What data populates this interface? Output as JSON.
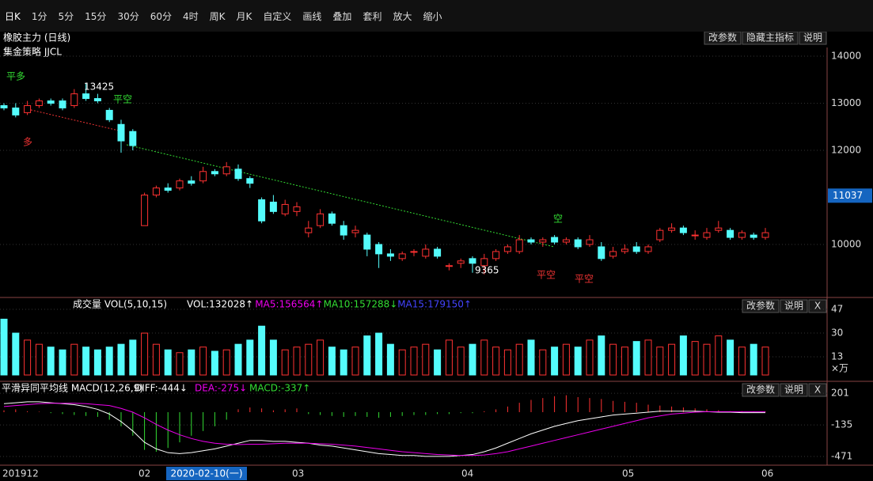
{
  "toolbar": [
    "日K",
    "1分",
    "5分",
    "15分",
    "30分",
    "60分",
    "4时",
    "周K",
    "月K",
    "自定义",
    "画线",
    "叠加",
    "套利",
    "放大",
    "缩小"
  ],
  "main": {
    "title": "橡胶主力 (日线)",
    "strategy": "集金策略 JJCL",
    "buttons": [
      "改参数",
      "隐藏主指标",
      "说明"
    ],
    "yticks": [
      10000,
      12000,
      13000,
      14000
    ],
    "last_price": 11037,
    "annotations": [
      "平多",
      "多",
      "平空",
      "空",
      "平空",
      "平空"
    ],
    "high_label": "13425",
    "low_label": "9365",
    "candles": [
      [
        12950,
        12900,
        13000,
        12850
      ],
      [
        12900,
        12750,
        13000,
        12700
      ],
      [
        12800,
        12950,
        13050,
        12750
      ],
      [
        12950,
        13050,
        13100,
        12900
      ],
      [
        13050,
        13000,
        13100,
        12950
      ],
      [
        13050,
        12900,
        13100,
        12850
      ],
      [
        12950,
        13200,
        13300,
        12900
      ],
      [
        13200,
        13100,
        13425,
        13050
      ],
      [
        13100,
        13050,
        13200,
        13000
      ],
      [
        12850,
        12650,
        12900,
        12600
      ],
      [
        12550,
        12200,
        12650,
        11950
      ],
      [
        12400,
        12100,
        12450,
        12000
      ],
      [
        10400,
        11050,
        11100,
        10400
      ],
      [
        11050,
        11200,
        11250,
        11000
      ],
      [
        11200,
        11150,
        11300,
        11100
      ],
      [
        11200,
        11350,
        11400,
        11150
      ],
      [
        11350,
        11300,
        11450,
        11250
      ],
      [
        11350,
        11550,
        11650,
        11300
      ],
      [
        11550,
        11500,
        11600,
        11450
      ],
      [
        11500,
        11650,
        11750,
        11450
      ],
      [
        11600,
        11400,
        11700,
        11350
      ],
      [
        11400,
        11300,
        11450,
        11200
      ],
      [
        10950,
        10500,
        11000,
        10450
      ],
      [
        10900,
        10700,
        11050,
        10650
      ],
      [
        10650,
        10850,
        10950,
        10600
      ],
      [
        10700,
        10800,
        10900,
        10600
      ],
      [
        10250,
        10350,
        10500,
        10150
      ],
      [
        10400,
        10650,
        10750,
        10350
      ],
      [
        10650,
        10450,
        10700,
        10400
      ],
      [
        10400,
        10200,
        10500,
        10100
      ],
      [
        10250,
        10300,
        10400,
        10150
      ],
      [
        10200,
        9900,
        10250,
        9750
      ],
      [
        10000,
        9800,
        10050,
        9500
      ],
      [
        9800,
        9750,
        9900,
        9650
      ],
      [
        9700,
        9800,
        9850,
        9650
      ],
      [
        9850,
        9850,
        9900,
        9750
      ],
      [
        9750,
        9900,
        10000,
        9700
      ],
      [
        9900,
        9750,
        9950,
        9700
      ],
      [
        9550,
        9550,
        9600,
        9450
      ],
      [
        9600,
        9650,
        9700,
        9500
      ],
      [
        9700,
        9600,
        9750,
        9400
      ],
      [
        9550,
        9700,
        9800,
        9365
      ],
      [
        9700,
        9850,
        9900,
        9650
      ],
      [
        9850,
        9950,
        10000,
        9800
      ],
      [
        9850,
        10100,
        10200,
        9800
      ],
      [
        10100,
        10050,
        10150,
        10000
      ],
      [
        10050,
        10100,
        10150,
        9950
      ],
      [
        10150,
        10050,
        10200,
        10000
      ],
      [
        10050,
        10100,
        10150,
        10000
      ],
      [
        10100,
        9950,
        10150,
        9900
      ],
      [
        10000,
        10100,
        10200,
        9950
      ],
      [
        9950,
        9700,
        10050,
        9650
      ],
      [
        9750,
        9850,
        9950,
        9700
      ],
      [
        9850,
        9900,
        10000,
        9800
      ],
      [
        9950,
        9850,
        10050,
        9800
      ],
      [
        9850,
        9950,
        10000,
        9800
      ],
      [
        10100,
        10300,
        10350,
        10050
      ],
      [
        10300,
        10350,
        10450,
        10250
      ],
      [
        10350,
        10250,
        10400,
        10200
      ],
      [
        10200,
        10200,
        10300,
        10100
      ],
      [
        10150,
        10250,
        10350,
        10100
      ],
      [
        10300,
        10350,
        10500,
        10250
      ],
      [
        10300,
        10150,
        10350,
        10100
      ],
      [
        10150,
        10250,
        10300,
        10100
      ],
      [
        10200,
        10150,
        10250,
        10100
      ],
      [
        10150,
        10250,
        10350,
        10100
      ]
    ]
  },
  "volume": {
    "title": "成交量 VOL(5,10,15)",
    "readouts": [
      "VOL:132028↑",
      "MA5:156564↑",
      "MA10:157288↓",
      "MA15:179150↑"
    ],
    "buttons": [
      "改参数",
      "说明",
      "X"
    ],
    "yticks": [
      13,
      30,
      47
    ],
    "unit": "×万",
    "values": [
      40,
      30,
      25,
      22,
      20,
      18,
      22,
      20,
      18,
      20,
      22,
      25,
      30,
      22,
      18,
      16,
      18,
      20,
      17,
      18,
      22,
      25,
      35,
      25,
      18,
      20,
      22,
      25,
      20,
      18,
      20,
      28,
      30,
      22,
      18,
      20,
      22,
      18,
      25,
      20,
      22,
      25,
      20,
      18,
      22,
      25,
      18,
      20,
      22,
      20,
      25,
      28,
      22,
      20,
      24,
      25,
      20,
      22,
      28,
      24,
      22,
      28,
      25,
      20,
      22,
      20
    ]
  },
  "macd": {
    "title": "平滑异同平均线 MACD(12,26,9)",
    "readouts": [
      "DIFF:-444↓",
      "DEA:-275↓",
      "MACD:-337↑"
    ],
    "buttons": [
      "改参数",
      "说明",
      "X"
    ],
    "yticks": [
      -471,
      -135,
      201
    ],
    "hist": [
      20,
      30,
      10,
      5,
      -10,
      -20,
      -30,
      -40,
      -50,
      -80,
      -150,
      -250,
      -400,
      -420,
      -380,
      -320,
      -250,
      -200,
      -150,
      -80,
      30,
      50,
      40,
      20,
      30,
      40,
      -20,
      -30,
      -40,
      -50,
      -40,
      -50,
      -60,
      -50,
      -40,
      -30,
      -30,
      -20,
      -20,
      -10,
      -10,
      10,
      30,
      60,
      100,
      130,
      150,
      170,
      180,
      160,
      150,
      140,
      120,
      110,
      100,
      80,
      70,
      60,
      50,
      40,
      30,
      20,
      10,
      10,
      5,
      5
    ],
    "dif": [
      90,
      100,
      110,
      110,
      100,
      90,
      80,
      60,
      30,
      -20,
      -100,
      -200,
      -320,
      -390,
      -430,
      -440,
      -430,
      -410,
      -390,
      -360,
      -330,
      -300,
      -300,
      -310,
      -310,
      -320,
      -330,
      -350,
      -360,
      -380,
      -400,
      -420,
      -440,
      -450,
      -460,
      -460,
      -470,
      -470,
      -470,
      -460,
      -450,
      -420,
      -380,
      -330,
      -280,
      -230,
      -190,
      -150,
      -120,
      -90,
      -70,
      -50,
      -30,
      -20,
      -10,
      0,
      10,
      10,
      10,
      10,
      5,
      0,
      0,
      -5,
      -5,
      -5
    ],
    "dea": [
      60,
      70,
      80,
      90,
      95,
      95,
      95,
      90,
      80,
      70,
      40,
      0,
      -60,
      -130,
      -190,
      -240,
      -280,
      -310,
      -330,
      -340,
      -345,
      -340,
      -340,
      -335,
      -330,
      -330,
      -330,
      -335,
      -340,
      -350,
      -360,
      -375,
      -390,
      -405,
      -420,
      -430,
      -440,
      -450,
      -455,
      -460,
      -460,
      -455,
      -440,
      -420,
      -390,
      -360,
      -330,
      -300,
      -270,
      -240,
      -210,
      -180,
      -150,
      -120,
      -90,
      -60,
      -40,
      -20,
      -10,
      0,
      5,
      5,
      5,
      5,
      5,
      5
    ]
  },
  "xaxis": {
    "labels": [
      "201912",
      "02",
      "03",
      "04",
      "05",
      "06"
    ],
    "cursor": "2020-02-10(一)"
  }
}
